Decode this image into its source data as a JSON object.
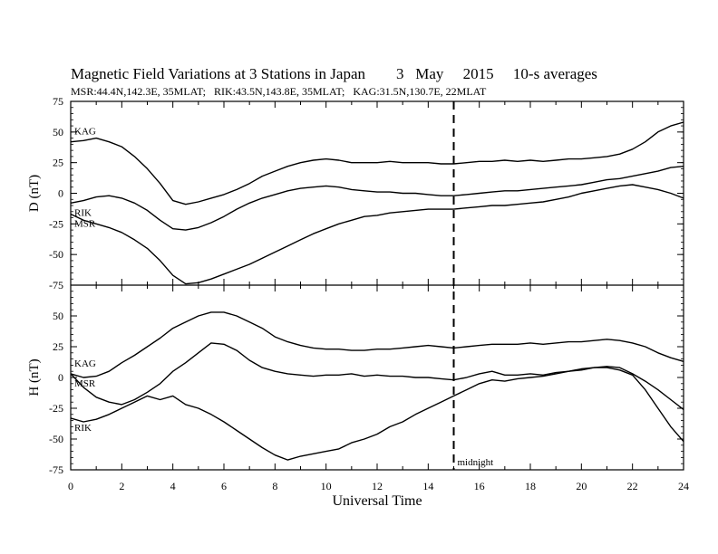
{
  "header": {
    "title": "Magnetic Field Variations at 3 Stations in Japan        3   May     2015     10-s averages",
    "subtitle": "MSR:44.4N,142.3E, 35MLAT;   RIK:43.5N,143.8E, 35MLAT;   KAG:31.5N,130.7E, 22MLAT"
  },
  "chart_data": [
    {
      "type": "line",
      "panel": "top",
      "ylabel": "D (nT)",
      "ylim": [
        -75,
        75
      ],
      "yticks": [
        75,
        50,
        25,
        0,
        -25,
        -50,
        -75
      ],
      "xlim": [
        0,
        24
      ],
      "grid": false,
      "series": [
        {
          "name": "KAG",
          "x": [
            0,
            0.5,
            1,
            1.5,
            2,
            2.5,
            3,
            3.5,
            4,
            4.5,
            5,
            5.5,
            6,
            6.5,
            7,
            7.5,
            8,
            8.5,
            9,
            9.5,
            10,
            10.5,
            11,
            11.5,
            12,
            12.5,
            13,
            13.5,
            14,
            14.5,
            15,
            15.5,
            16,
            16.5,
            17,
            17.5,
            18,
            18.5,
            19,
            19.5,
            20,
            20.5,
            21,
            21.5,
            22,
            22.5,
            23,
            23.5,
            24
          ],
          "y": [
            42,
            43,
            45,
            42,
            38,
            30,
            20,
            8,
            -6,
            -9,
            -7,
            -4,
            -1,
            3,
            8,
            14,
            18,
            22,
            25,
            27,
            28,
            27,
            25,
            25,
            25,
            26,
            25,
            25,
            25,
            24,
            24,
            25,
            26,
            26,
            27,
            26,
            27,
            26,
            27,
            28,
            28,
            29,
            30,
            32,
            36,
            42,
            50,
            55,
            58
          ]
        },
        {
          "name": "RIK",
          "x": [
            0,
            0.5,
            1,
            1.5,
            2,
            2.5,
            3,
            3.5,
            4,
            4.5,
            5,
            5.5,
            6,
            6.5,
            7,
            7.5,
            8,
            8.5,
            9,
            9.5,
            10,
            10.5,
            11,
            11.5,
            12,
            12.5,
            13,
            13.5,
            14,
            14.5,
            15,
            15.5,
            16,
            16.5,
            17,
            17.5,
            18,
            18.5,
            19,
            19.5,
            20,
            20.5,
            21,
            21.5,
            22,
            22.5,
            23,
            23.5,
            24
          ],
          "y": [
            -8,
            -6,
            -3,
            -2,
            -4,
            -8,
            -14,
            -22,
            -29,
            -30,
            -28,
            -24,
            -19,
            -13,
            -8,
            -4,
            -1,
            2,
            4,
            5,
            6,
            5,
            3,
            2,
            1,
            1,
            0,
            0,
            -1,
            -2,
            -2,
            -1,
            0,
            1,
            2,
            2,
            3,
            4,
            5,
            6,
            7,
            9,
            11,
            12,
            14,
            16,
            18,
            21,
            22
          ]
        },
        {
          "name": "MSR",
          "x": [
            0,
            0.5,
            1,
            1.5,
            2,
            2.5,
            3,
            3.5,
            4,
            4.5,
            5,
            5.5,
            6,
            6.5,
            7,
            7.5,
            8,
            8.5,
            9,
            9.5,
            10,
            10.5,
            11,
            11.5,
            12,
            12.5,
            13,
            13.5,
            14,
            14.5,
            15,
            15.5,
            16,
            16.5,
            17,
            17.5,
            18,
            18.5,
            19,
            19.5,
            20,
            20.5,
            21,
            21.5,
            22,
            22.5,
            23,
            23.5,
            24
          ],
          "y": [
            -17,
            -22,
            -25,
            -28,
            -32,
            -38,
            -45,
            -55,
            -67,
            -74,
            -73,
            -70,
            -66,
            -62,
            -58,
            -53,
            -48,
            -43,
            -38,
            -33,
            -29,
            -25,
            -22,
            -19,
            -18,
            -16,
            -15,
            -14,
            -13,
            -13,
            -13,
            -12,
            -11,
            -10,
            -10,
            -9,
            -8,
            -7,
            -5,
            -3,
            0,
            2,
            4,
            6,
            7,
            5,
            3,
            0,
            -4
          ]
        }
      ]
    },
    {
      "type": "line",
      "panel": "bottom",
      "ylabel": "H (nT)",
      "xlabel": "Universal Time",
      "ylim": [
        -75,
        75
      ],
      "yticks": [
        50,
        25,
        0,
        -25,
        -50,
        -75
      ],
      "xlim": [
        0,
        24
      ],
      "xticks": [
        0,
        2,
        4,
        6,
        8,
        10,
        12,
        14,
        16,
        18,
        20,
        22,
        24
      ],
      "grid": false,
      "series": [
        {
          "name": "KAG",
          "x": [
            0,
            0.5,
            1,
            1.5,
            2,
            2.5,
            3,
            3.5,
            4,
            4.5,
            5,
            5.5,
            6,
            6.5,
            7,
            7.5,
            8,
            8.5,
            9,
            9.5,
            10,
            10.5,
            11,
            11.5,
            12,
            12.5,
            13,
            13.5,
            14,
            14.5,
            15,
            15.5,
            16,
            16.5,
            17,
            17.5,
            18,
            18.5,
            19,
            19.5,
            20,
            20.5,
            21,
            21.5,
            22,
            22.5,
            23,
            23.5,
            24
          ],
          "y": [
            3,
            0,
            1,
            5,
            12,
            18,
            25,
            32,
            40,
            45,
            50,
            53,
            53,
            50,
            45,
            40,
            33,
            29,
            26,
            24,
            23,
            23,
            22,
            22,
            23,
            23,
            24,
            25,
            26,
            25,
            24,
            25,
            26,
            27,
            27,
            27,
            28,
            27,
            28,
            29,
            29,
            30,
            31,
            30,
            28,
            25,
            20,
            16,
            13
          ]
        },
        {
          "name": "MSR",
          "x": [
            0,
            0.5,
            1,
            1.5,
            2,
            2.5,
            3,
            3.5,
            4,
            4.5,
            5,
            5.5,
            6,
            6.5,
            7,
            7.5,
            8,
            8.5,
            9,
            9.5,
            10,
            10.5,
            11,
            11.5,
            12,
            12.5,
            13,
            13.5,
            14,
            14.5,
            15,
            15.5,
            16,
            16.5,
            17,
            17.5,
            18,
            18.5,
            19,
            19.5,
            20,
            20.5,
            21,
            21.5,
            22,
            22.5,
            23,
            23.5,
            24
          ],
          "y": [
            3,
            -8,
            -16,
            -20,
            -22,
            -18,
            -12,
            -5,
            5,
            12,
            20,
            28,
            27,
            22,
            14,
            8,
            5,
            3,
            2,
            1,
            2,
            2,
            3,
            1,
            2,
            1,
            1,
            0,
            0,
            -1,
            -2,
            0,
            3,
            5,
            2,
            2,
            3,
            2,
            4,
            5,
            6,
            8,
            9,
            8,
            3,
            -3,
            -10,
            -18,
            -26
          ]
        },
        {
          "name": "RIK",
          "x": [
            0,
            0.5,
            1,
            1.5,
            2,
            2.5,
            3,
            3.5,
            4,
            4.5,
            5,
            5.5,
            6,
            6.5,
            7,
            7.5,
            8,
            8.5,
            9,
            9.5,
            10,
            10.5,
            11,
            11.5,
            12,
            12.5,
            13,
            13.5,
            14,
            14.5,
            15,
            15.5,
            16,
            16.5,
            17,
            17.5,
            18,
            18.5,
            19,
            19.5,
            20,
            20.5,
            21,
            21.5,
            22,
            22.5,
            23,
            23.5,
            24
          ],
          "y": [
            -33,
            -36,
            -34,
            -30,
            -25,
            -20,
            -15,
            -18,
            -15,
            -22,
            -25,
            -30,
            -36,
            -43,
            -50,
            -57,
            -63,
            -67,
            -64,
            -62,
            -60,
            -58,
            -53,
            -50,
            -46,
            -40,
            -36,
            -30,
            -25,
            -20,
            -15,
            -10,
            -5,
            -2,
            -3,
            -1,
            0,
            1,
            3,
            5,
            7,
            8,
            8,
            6,
            2,
            -10,
            -25,
            -40,
            -52
          ]
        }
      ]
    }
  ],
  "annotations": {
    "midnight_label": "midnight",
    "midnight_ut": 15
  },
  "x_axis": {
    "label": "Universal Time",
    "ticks": [
      0,
      2,
      4,
      6,
      8,
      10,
      12,
      14,
      16,
      18,
      20,
      22,
      24
    ]
  }
}
